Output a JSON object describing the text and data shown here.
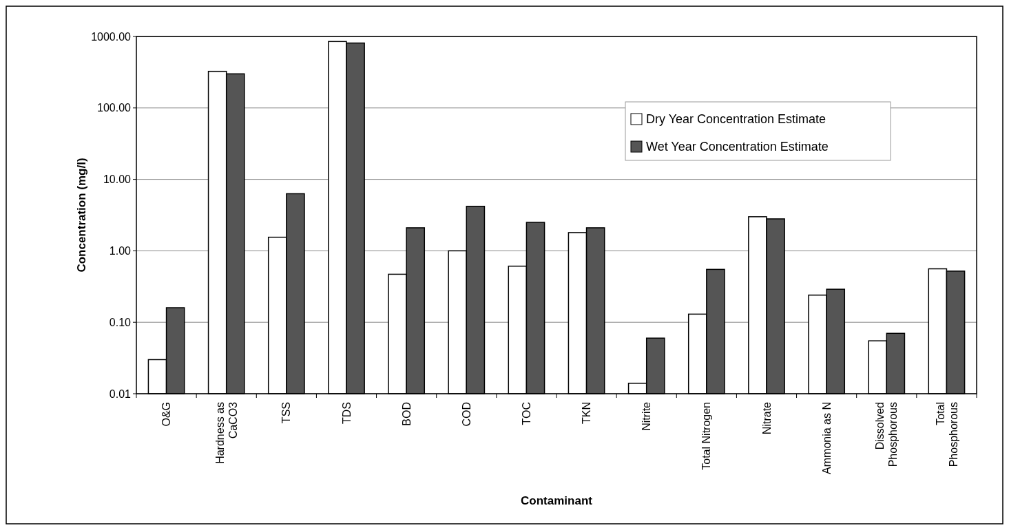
{
  "chart_data": {
    "type": "bar",
    "xlabel": "Contaminant",
    "ylabel": "Concentration (mg/l)",
    "categories": [
      "O&G",
      "Hardness as CaCO3",
      "TSS",
      "TDS",
      "BOD",
      "COD",
      "TOC",
      "TKN",
      "Nitrite",
      "Total Nitrogen",
      "Nitrate",
      "Ammonia as N",
      "Dissolved Phosphorous",
      "Total Phosphorous"
    ],
    "series": [
      {
        "name": "Dry Year Concentration Estimate",
        "color": "#ffffff",
        "values": [
          0.03,
          325,
          1.55,
          850,
          0.47,
          1.0,
          0.61,
          1.8,
          0.014,
          0.13,
          3.0,
          0.24,
          0.055,
          0.56
        ]
      },
      {
        "name": "Wet Year Concentration Estimate",
        "color": "#555555",
        "values": [
          0.16,
          300,
          6.3,
          810,
          2.1,
          4.2,
          2.5,
          2.1,
          0.06,
          0.55,
          2.8,
          0.29,
          0.07,
          0.52
        ]
      }
    ],
    "log": true,
    "ylim": [
      0.01,
      1000
    ],
    "yticks": [
      {
        "value": 0.01,
        "label": "0.01"
      },
      {
        "value": 0.1,
        "label": "0.10"
      },
      {
        "value": 1,
        "label": "1.00"
      },
      {
        "value": 10,
        "label": "10.00"
      },
      {
        "value": 100,
        "label": "100.00"
      },
      {
        "value": 1000,
        "label": "1000.00"
      }
    ],
    "grid": "y",
    "legend": "top right"
  }
}
